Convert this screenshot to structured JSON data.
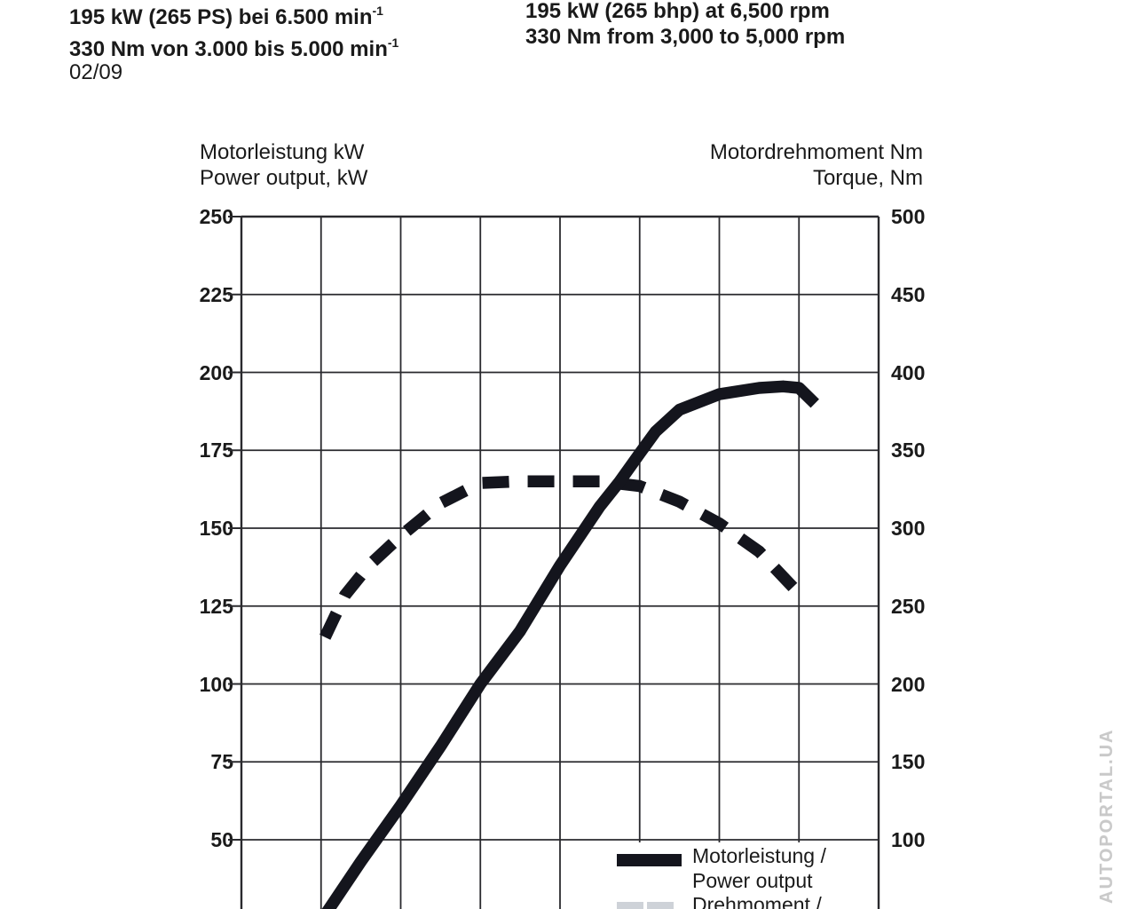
{
  "colors": {
    "ink": "#1a1a1a",
    "curve": "#14151d",
    "grid": "#2a2a2e",
    "watermark": "#c9c9c9",
    "legend_cut_swatch": "#ced2d8",
    "background": "#ffffff"
  },
  "header": {
    "de": {
      "power": "195 kW (265 PS) bei 6.500 min",
      "power_sup": "-1",
      "torque": "330 Nm von 3.000 bis 5.000 min",
      "torque_sup": "-1"
    },
    "en": {
      "power": "195 kW (265 bhp) at 6,500 rpm",
      "torque": "330 Nm from 3,000 to 5,000 rpm"
    },
    "date_code": "02/09"
  },
  "axes": {
    "left_title_de": "Motorleistung kW",
    "left_title_en": "Power output, kW",
    "right_title_de": "Motordrehmoment Nm",
    "right_title_en": "Torque, Nm"
  },
  "legend": {
    "power": {
      "label_de": "Motorleistung /",
      "label_en": "Power output",
      "swatch": "solid"
    },
    "torque": {
      "label_de": "Drehmoment /",
      "swatch": "dashed"
    }
  },
  "watermark": "AUTOPORTAL.UA",
  "chart_data": {
    "type": "line",
    "title": "",
    "x": {
      "unit": "rpm",
      "min": 0,
      "max": 8000,
      "gridline_step": 1000,
      "tick_labels_visible": false
    },
    "y_left": {
      "label": "Motorleistung kW / Power output, kW",
      "unit": "kW",
      "ticks": [
        250,
        225,
        200,
        175,
        150,
        125,
        100,
        75,
        50
      ],
      "tick_step": 25,
      "top_value": 250
    },
    "y_right": {
      "label": "Motordrehmoment Nm / Torque, Nm",
      "unit": "Nm",
      "ticks": [
        500,
        450,
        400,
        350,
        300,
        250,
        200,
        150,
        100
      ],
      "tick_step": 50,
      "top_value": 500
    },
    "grid": true,
    "legend_position": "bottom-right",
    "series": [
      {
        "name": "Drehmoment / Torque",
        "axis": "right",
        "unit": "Nm",
        "style": "dashed",
        "points": [
          [
            1050,
            230
          ],
          [
            1300,
            257
          ],
          [
            1600,
            276
          ],
          [
            2000,
            295
          ],
          [
            2500,
            316
          ],
          [
            3000,
            329
          ],
          [
            3500,
            330
          ],
          [
            4000,
            330
          ],
          [
            4500,
            330
          ],
          [
            5000,
            327
          ],
          [
            5500,
            317
          ],
          [
            6000,
            303
          ],
          [
            6500,
            285
          ],
          [
            7000,
            258
          ]
        ]
      },
      {
        "name": "Motorleistung / Power output",
        "axis": "left",
        "unit": "kW",
        "style": "solid",
        "points": [
          [
            1000,
            24
          ],
          [
            1500,
            43
          ],
          [
            2000,
            61
          ],
          [
            2500,
            80
          ],
          [
            3000,
            100
          ],
          [
            3500,
            117
          ],
          [
            4000,
            138
          ],
          [
            4500,
            157
          ],
          [
            4750,
            165
          ],
          [
            5000,
            174
          ],
          [
            5200,
            181
          ],
          [
            5500,
            188
          ],
          [
            6000,
            193
          ],
          [
            6500,
            195
          ],
          [
            6800,
            195.5
          ],
          [
            7000,
            195
          ],
          [
            7200,
            190
          ]
        ]
      }
    ],
    "annotations": {
      "power_peak": "195 kW at 6,500 rpm",
      "torque_plateau": "330 Nm from 3,000 to 5,000 rpm"
    }
  }
}
